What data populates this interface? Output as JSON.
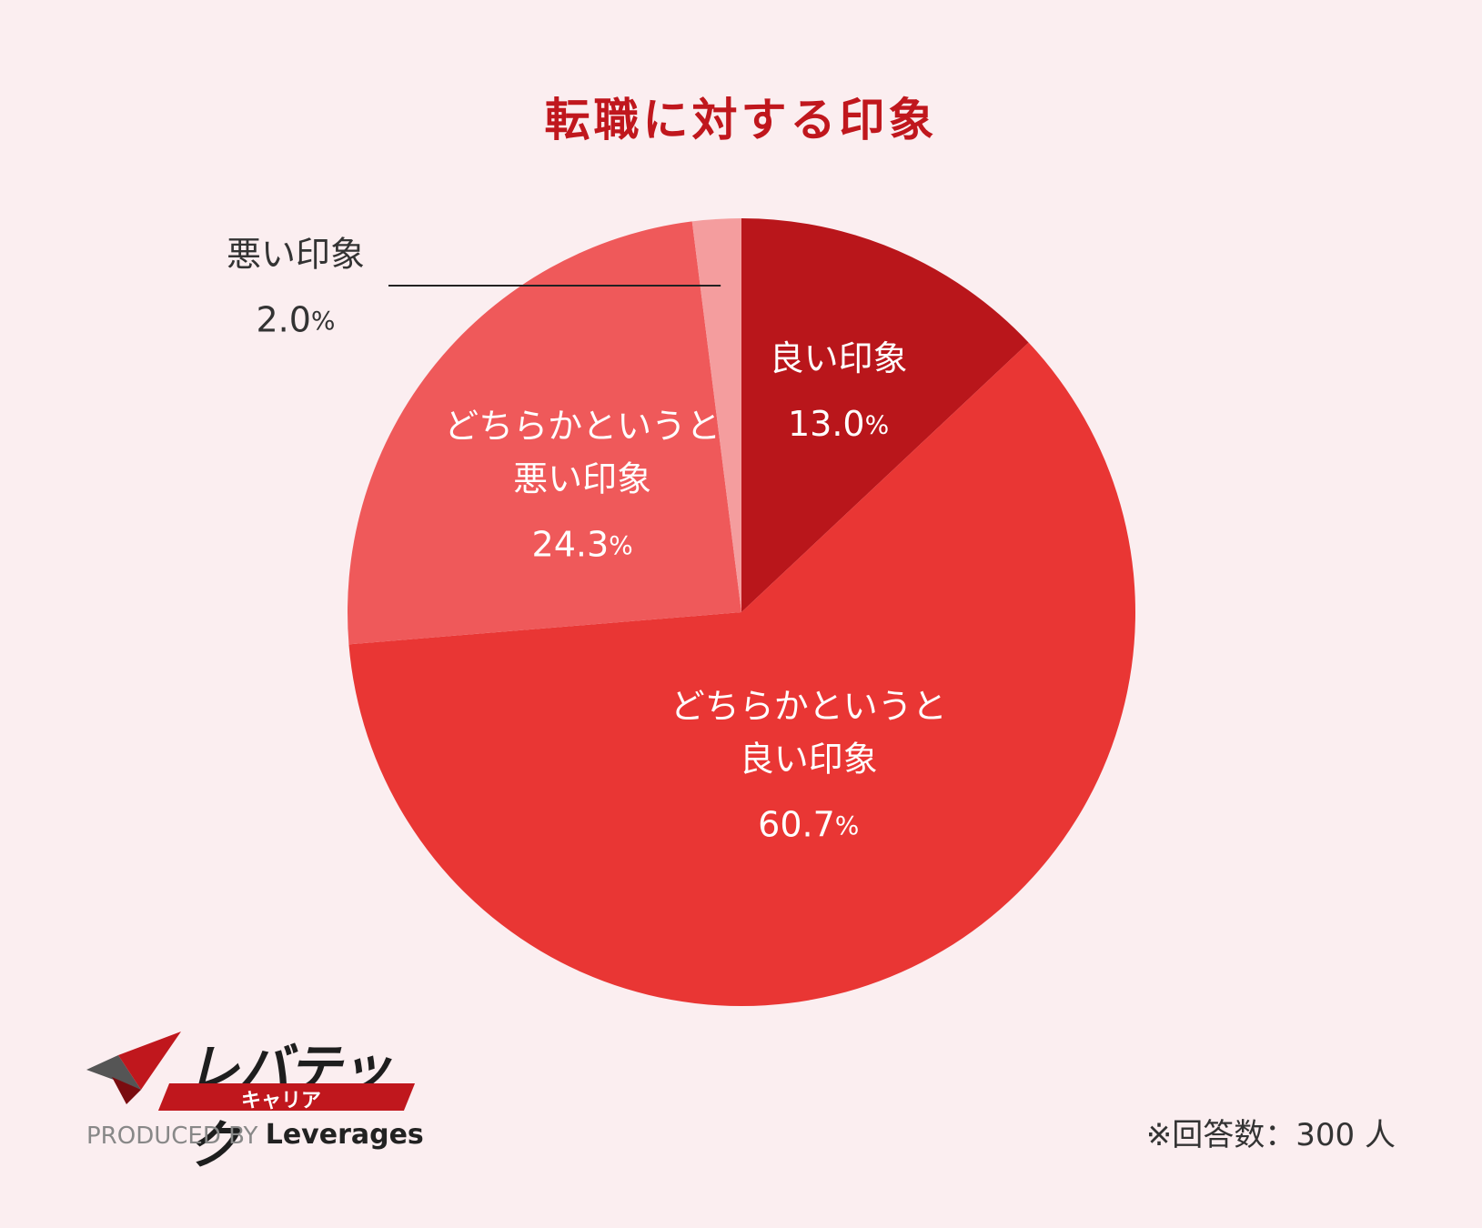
{
  "chart_data": {
    "type": "pie",
    "title": "転職に対する印象",
    "slices": [
      {
        "label_lines": [
          "良い印象"
        ],
        "value": 13.0,
        "value_text": "13.0",
        "color": "#b9161b"
      },
      {
        "label_lines": [
          "どちらかというと",
          "良い印象"
        ],
        "value": 60.7,
        "value_text": "60.7",
        "color": "#e93634"
      },
      {
        "label_lines": [
          "どちらかというと",
          "悪い印象"
        ],
        "value": 24.3,
        "value_text": "24.3",
        "color": "#ef595a"
      },
      {
        "label_lines": [
          "悪い印象"
        ],
        "value": 2.0,
        "value_text": "2.0",
        "color": "#f49d9e"
      }
    ],
    "percent_sign": "%",
    "start_angle": "12 o'clock",
    "direction": "clockwise"
  },
  "footnote": "※回答数：300 人",
  "logo": {
    "name": "レバテック",
    "sub": "キャリア",
    "produced_by_prefix": "PRODUCED BY",
    "produced_by_brand": "Leverages"
  }
}
